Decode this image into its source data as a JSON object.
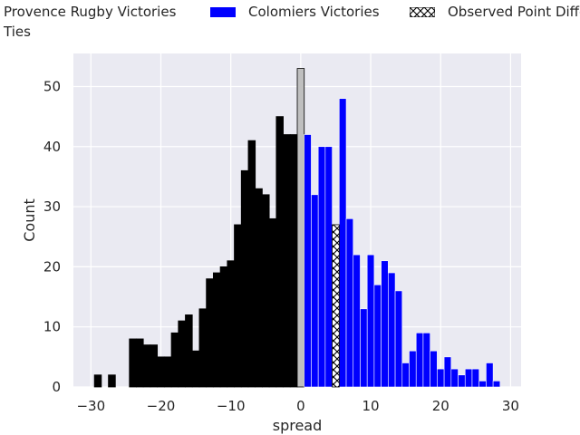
{
  "chart_data": {
    "type": "bar",
    "xlabel": "spread",
    "ylabel": "Count",
    "xlim": [
      -32.5,
      31.5
    ],
    "ylim": [
      0,
      55.5
    ],
    "xticks": [
      -30,
      -20,
      -10,
      0,
      10,
      20,
      30
    ],
    "yticks": [
      0,
      10,
      20,
      30,
      40,
      50
    ],
    "grid": true,
    "legend_position": "top",
    "legend": [
      {
        "label": "Provence Rugby Victories",
        "color": "#000000",
        "pattern": "solid"
      },
      {
        "label": "Colomiers Victories",
        "color": "#0000ff",
        "pattern": "solid"
      },
      {
        "label": "Observed Point Differential",
        "color": "#000000",
        "pattern": "hatched"
      },
      {
        "label": "Ties",
        "color": "#bfbfbf",
        "pattern": "solid"
      }
    ],
    "series": [
      {
        "name": "Provence Rugby Victories",
        "color": "#000000",
        "x": [
          -29,
          -27,
          -24,
          -23,
          -22,
          -21,
          -20,
          -19,
          -18,
          -17,
          -16,
          -15,
          -14,
          -13,
          -12,
          -11,
          -10,
          -9,
          -8,
          -7,
          -6,
          -5,
          -4,
          -3,
          -2,
          -1
        ],
        "values": [
          2,
          2,
          8,
          8,
          7,
          7,
          5,
          5,
          9,
          11,
          12,
          6,
          13,
          18,
          19,
          20,
          21,
          27,
          36,
          41,
          33,
          32,
          28,
          45,
          42,
          42
        ]
      },
      {
        "name": "Ties",
        "color": "#bfbfbf",
        "x": [
          0
        ],
        "values": [
          53
        ]
      },
      {
        "name": "Colomiers Victories",
        "color": "#0000ff",
        "x": [
          1,
          2,
          3,
          4,
          6,
          7,
          8,
          9,
          10,
          11,
          12,
          13,
          14,
          15,
          16,
          17,
          18,
          19,
          20,
          21,
          22,
          23,
          24,
          25,
          26,
          27,
          28
        ],
        "values": [
          42,
          32,
          40,
          40,
          48,
          28,
          22,
          13,
          22,
          17,
          21,
          19,
          16,
          4,
          6,
          9,
          9,
          6,
          3,
          5,
          3,
          2,
          3,
          3,
          1,
          4,
          1
        ]
      },
      {
        "name": "Observed Point Differential",
        "color": "#000000",
        "x": [
          5
        ],
        "values": [
          27
        ]
      }
    ]
  }
}
